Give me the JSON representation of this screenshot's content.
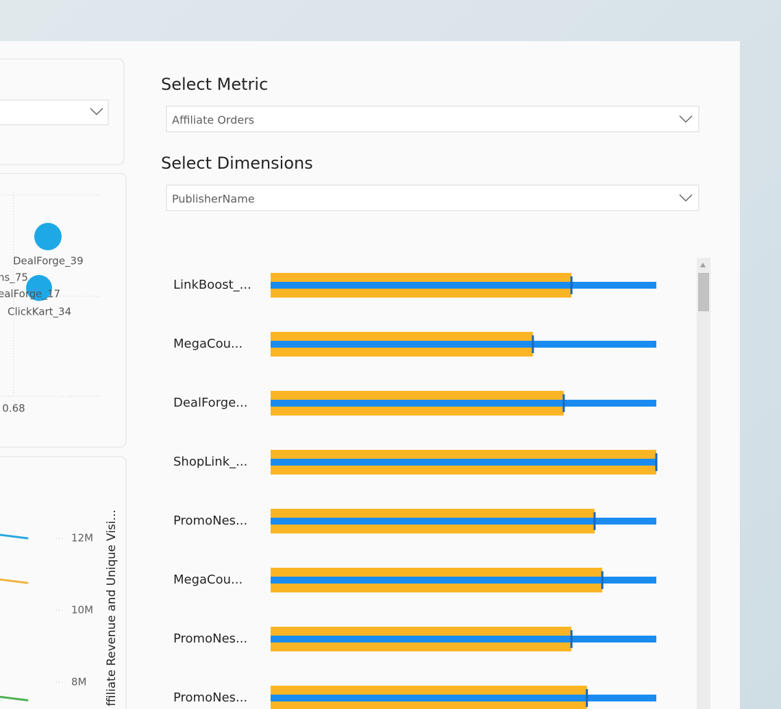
{
  "scatter": {
    "labels": [
      "DealForge_39",
      "ns_75",
      "ealForge_17",
      "ClickKart_34"
    ],
    "xticks": [
      0.68
    ]
  },
  "line_chart": {
    "type": "line",
    "y_label": "ffiliate Revenue and Unique Visi...",
    "ylim": [
      7250000,
      13600000
    ],
    "yticks": [
      {
        "value": 12000000,
        "label": "12M"
      },
      {
        "value": 10000000,
        "label": "10M"
      },
      {
        "value": 8000000,
        "label": "8M"
      }
    ],
    "series": [
      {
        "color": "#29a8e0",
        "values": [
          12100000,
          12000000
        ]
      },
      {
        "color": "#f0b43c",
        "values": [
          10860000,
          10760000
        ]
      },
      {
        "color": "#4caf50",
        "values": [
          7600000,
          7500000
        ]
      }
    ]
  },
  "metric_select": {
    "title": "Select Metric",
    "value": "Affiliate Orders"
  },
  "dimension_select": {
    "title": "Select Dimensions",
    "value": "PublisherName"
  },
  "chart_data": {
    "type": "bullet",
    "categories": [
      "LinkBoost_...",
      "MegaCou...",
      "DealForge...",
      "ShopLink_...",
      "PromoNes...",
      "MegaCou...",
      "PromoNes...",
      "PromoNes..."
    ],
    "values": [
      78,
      68,
      76,
      100,
      84,
      86,
      78,
      82
    ],
    "xlim": [
      0,
      100
    ],
    "bar_color": "#fbb524",
    "target_color": "#1a8cf0",
    "marker_color": "#1565c0"
  }
}
